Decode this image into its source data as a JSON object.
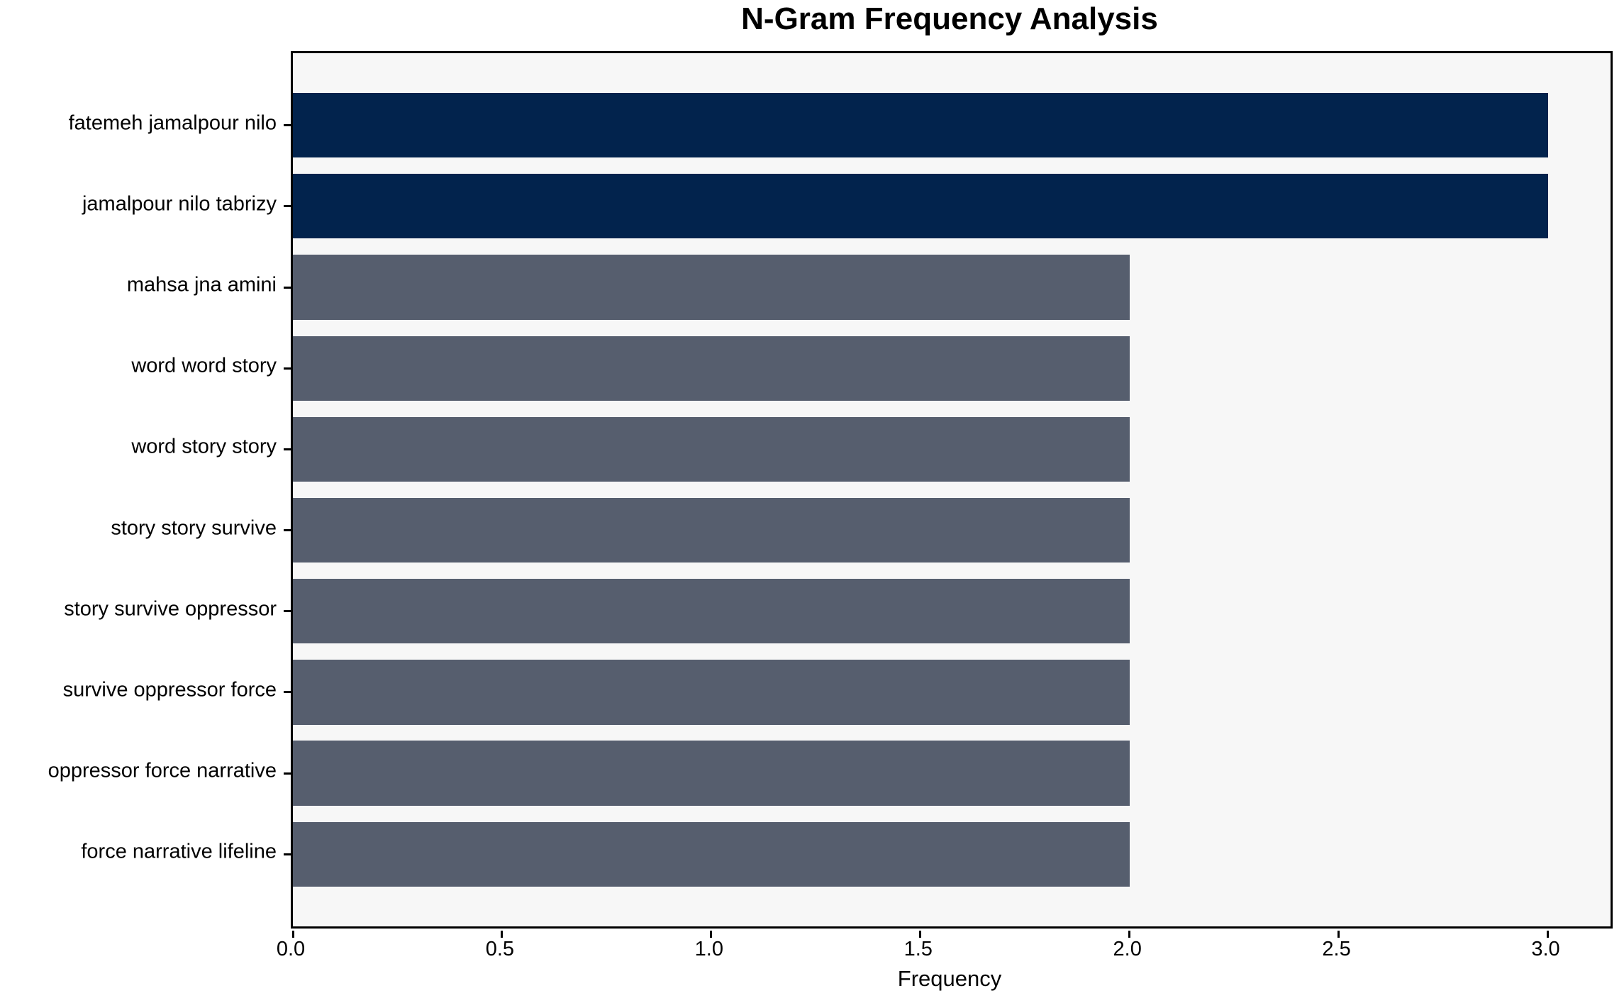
{
  "chart_data": {
    "type": "bar",
    "orientation": "horizontal",
    "title": "N-Gram Frequency Analysis",
    "xlabel": "Frequency",
    "ylabel": "",
    "categories": [
      "fatemeh jamalpour nilo",
      "jamalpour nilo tabrizy",
      "mahsa jna amini",
      "word word story",
      "word story story",
      "story story survive",
      "story survive oppressor",
      "survive oppressor force",
      "oppressor force narrative",
      "force narrative lifeline"
    ],
    "values": [
      3,
      3,
      2,
      2,
      2,
      2,
      2,
      2,
      2,
      2
    ],
    "bar_colors": [
      "#02234d",
      "#02234d",
      "#565e6e",
      "#565e6e",
      "#565e6e",
      "#565e6e",
      "#565e6e",
      "#565e6e",
      "#565e6e",
      "#565e6e"
    ],
    "x_ticks": [
      0.0,
      0.5,
      1.0,
      1.5,
      2.0,
      2.5,
      3.0
    ],
    "x_tick_labels": [
      "0.0",
      "0.5",
      "1.0",
      "1.5",
      "2.0",
      "2.5",
      "3.0"
    ],
    "xlim": [
      0,
      3.15
    ],
    "grid": false,
    "legend": null,
    "plot_background": "#f7f7f7",
    "figure_background": "#ffffff",
    "highlight_color": "#02234d",
    "base_color": "#565e6e",
    "bar_height_fraction": 0.8
  }
}
